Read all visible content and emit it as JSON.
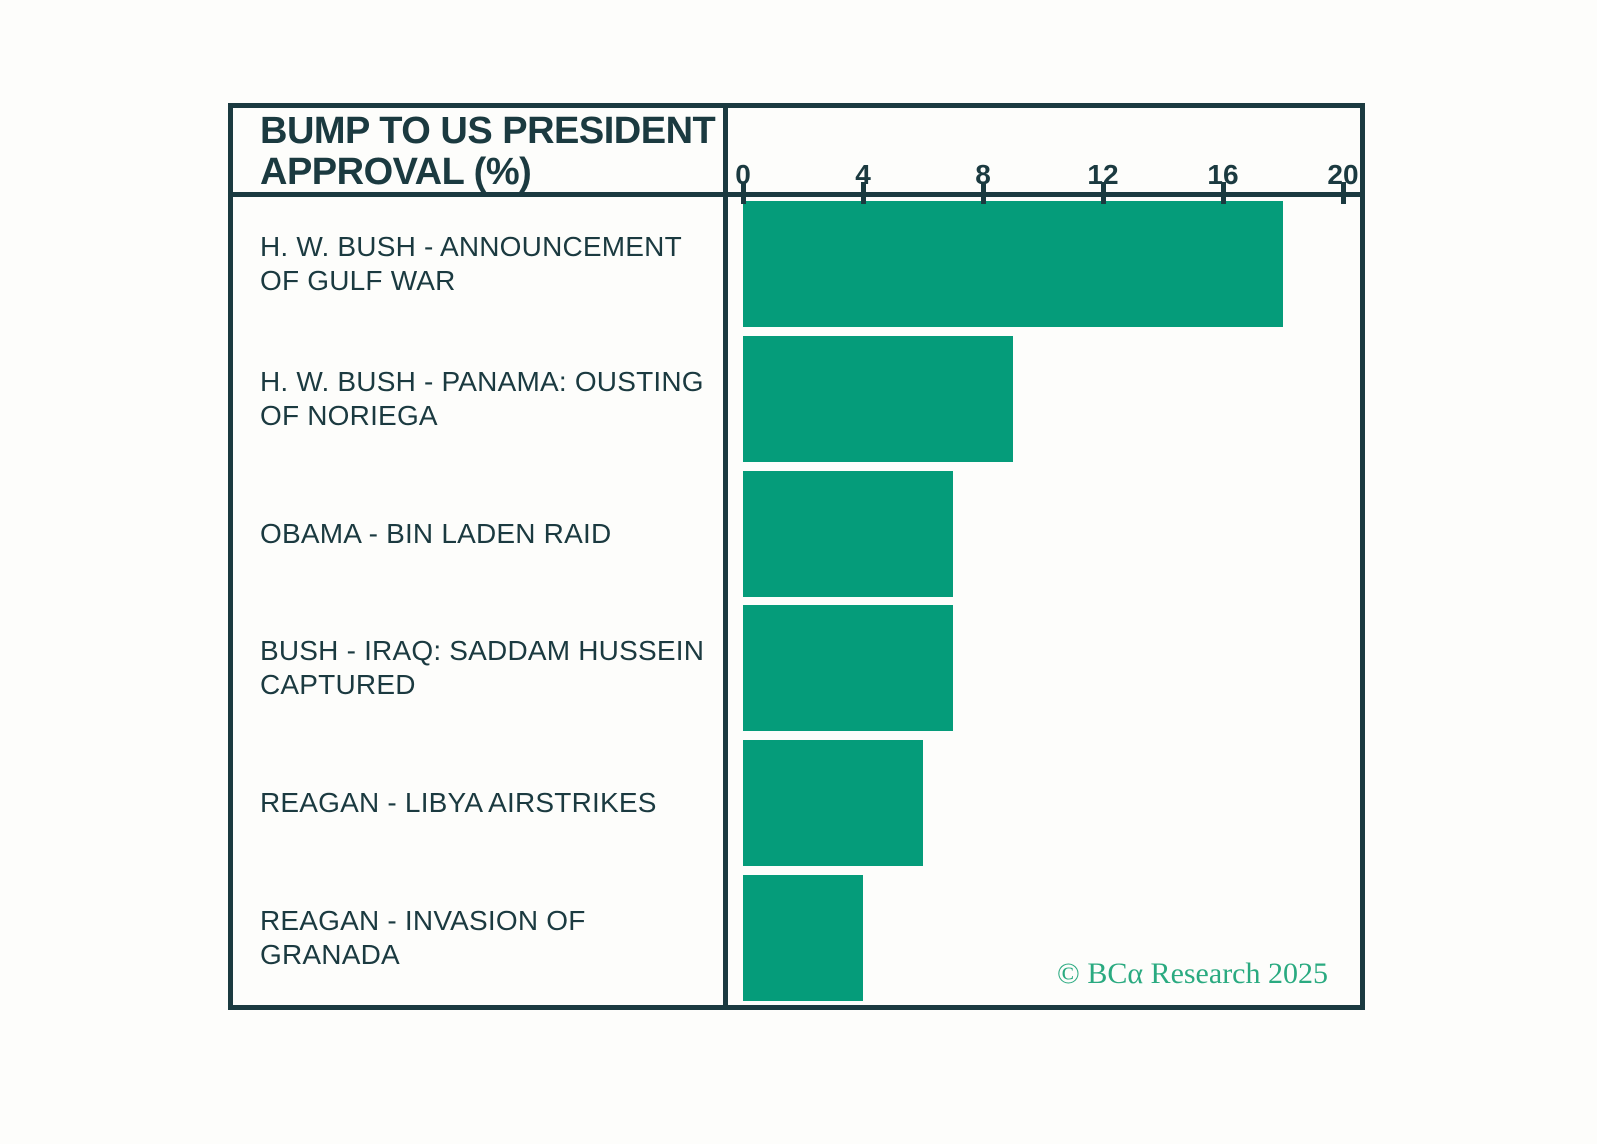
{
  "header": {
    "title_lines": [
      "BUMP TO US PRESIDENT",
      "APPROVAL (%)"
    ]
  },
  "footer": {
    "watermark": "© BCα Research 2025"
  },
  "colors": {
    "frame_and_text": "#1b3a40",
    "bar_fill": "#059c7a",
    "watermark_green": "#2aaa80",
    "background": "#fdfdfb"
  },
  "chart_data": {
    "type": "bar",
    "orientation": "horizontal",
    "title": "BUMP TO US PRESIDENT APPROVAL (%)",
    "categories": [
      "H. W. BUSH - ANNOUNCEMENT OF GULF WAR",
      "H. W. BUSH - PANAMA: OUSTING OF NORIEGA",
      "OBAMA - BIN LADEN RAID",
      "BUSH - IRAQ: SADDAM HUSSEIN CAPTURED",
      "REAGAN - LIBYA AIRSTRIKES",
      "REAGAN - INVASION OF GRANADA"
    ],
    "values": [
      18,
      9,
      7,
      7,
      6,
      4
    ],
    "xlabel": "",
    "ylabel": "",
    "xlim": [
      0,
      20
    ],
    "xticks": [
      0,
      4,
      8,
      12,
      16,
      20
    ],
    "grid": false,
    "legend": false,
    "annotations": [
      "© BCα Research 2025"
    ]
  }
}
